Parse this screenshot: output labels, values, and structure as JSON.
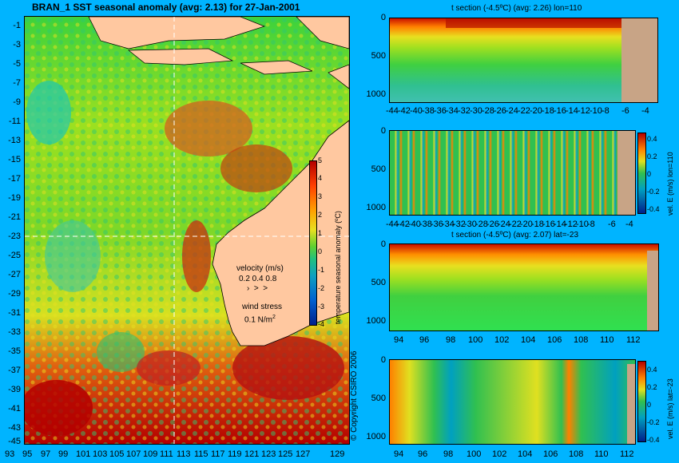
{
  "main_map": {
    "title": "BRAN_1 SST seasonal anomaly (avg: 2.13) for 27-Jan-2001",
    "lat_ticks": [
      "-1",
      "-3",
      "-5",
      "-7",
      "-9",
      "-11",
      "-13",
      "-15",
      "-17",
      "-19",
      "-21",
      "-23",
      "-25",
      "-27",
      "-29",
      "-31",
      "-33",
      "-35",
      "-37",
      "-39",
      "-41",
      "-43",
      "-45"
    ],
    "lon_ticks": [
      "93",
      "95",
      "97",
      "99",
      "101",
      "103",
      "105",
      "107",
      "109",
      "111",
      "113",
      "115",
      "117",
      "119",
      "121",
      "123",
      "125",
      "127",
      "129"
    ],
    "colorbar": {
      "label": "temperature seasonal anomaly (ºC)",
      "ticks": [
        "5",
        "4",
        "3",
        "2",
        "1",
        "0",
        "-1",
        "-2",
        "-3",
        "-4"
      ]
    },
    "velocity_legend": {
      "title": "velocity (m/s)",
      "scale": "0.2 0.4 0.8"
    },
    "wind_legend": {
      "title": "wind stress",
      "scale": "0.1 N/m",
      "unit_sup": "2"
    },
    "copyright": "© Copyright CSIRO 2006",
    "section_lines": {
      "lon": 110,
      "lat": -23
    }
  },
  "panels": [
    {
      "id": "t-section-lon",
      "title": "t section (-4.5ºC) (avg: 2.26) lon=110",
      "y_ticks": [
        "0",
        "500",
        "1000"
      ],
      "x_ticks": [
        "-44",
        "-42",
        "-40",
        "-38",
        "-36",
        "-34",
        "-32",
        "-30",
        "-28",
        "-26",
        "-24",
        "-22",
        "-20",
        "-18",
        "-16",
        "-14",
        "-12",
        "-10",
        "-8",
        "-6",
        "-4"
      ],
      "colorbar": null
    },
    {
      "id": "vel-section-lon",
      "title": "",
      "y_ticks": [
        "0",
        "500",
        "1000"
      ],
      "x_ticks": [
        "-44",
        "-42",
        "-40",
        "-38",
        "-36",
        "-34",
        "-32",
        "-30",
        "-28",
        "-26",
        "-24",
        "-22",
        "-20",
        "-18",
        "-16",
        "-14",
        "-12",
        "-10",
        "-8",
        "-6",
        "-4"
      ],
      "colorbar": {
        "label": "vel. E (m/s) lon=110",
        "ticks": [
          "0.4",
          "0.2",
          "0",
          "-0.2",
          "-0.4"
        ]
      }
    },
    {
      "id": "t-section-lat",
      "title": "t section (-4.5ºC) (avg: 2.07) lat=-23",
      "y_ticks": [
        "0",
        "500",
        "1000"
      ],
      "x_ticks": [
        "94",
        "96",
        "98",
        "100",
        "102",
        "104",
        "106",
        "108",
        "110",
        "112"
      ],
      "colorbar": null
    },
    {
      "id": "vel-section-lat",
      "title": "",
      "y_ticks": [
        "0",
        "500",
        "1000"
      ],
      "x_ticks": [
        "94",
        "96",
        "98",
        "100",
        "102",
        "104",
        "106",
        "108",
        "110",
        "112"
      ],
      "colorbar": {
        "label": "vel. E (m/s) lat=-23",
        "ticks": [
          "0.4",
          "0.2",
          "0",
          "-0.2",
          "-0.4"
        ]
      }
    }
  ],
  "colors": {
    "background": "#00b4ff",
    "land": "#ffc8a0",
    "land_section": "#c8a486",
    "warm": "#b40000",
    "cold": "#00208c"
  }
}
